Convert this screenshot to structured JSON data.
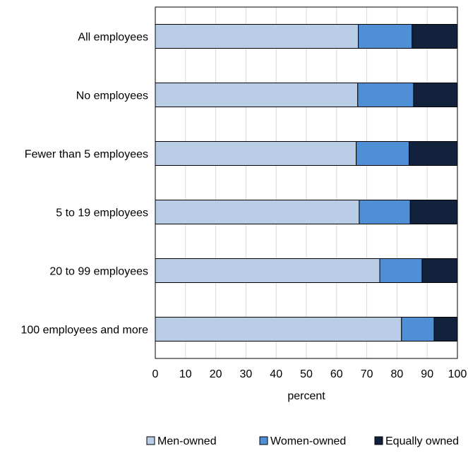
{
  "chart_data": {
    "type": "bar",
    "orientation": "horizontal",
    "stacked": true,
    "categories": [
      "All employees",
      "No employees",
      "Fewer than 5 employees",
      "5 to 19 employees",
      "20 to 99 employees",
      "100 employees and more"
    ],
    "series": [
      {
        "name": "Men-owned",
        "color": "#b9cde6",
        "values": [
          67.2,
          67.0,
          66.5,
          67.5,
          74.3,
          81.5
        ]
      },
      {
        "name": "Women-owned",
        "color": "#4f8fd6",
        "values": [
          17.8,
          18.5,
          17.5,
          16.9,
          14.0,
          10.8
        ]
      },
      {
        "name": "Equally owned",
        "color": "#12223d",
        "values": [
          15.0,
          14.5,
          16.0,
          15.6,
          11.7,
          7.7
        ]
      }
    ],
    "xlabel": "percent",
    "ylabel": "",
    "xlim": [
      0,
      100
    ],
    "xticks": [
      "0",
      "10",
      "20",
      "30",
      "40",
      "50",
      "60",
      "70",
      "80",
      "90",
      "100"
    ],
    "grid": "vertical",
    "legend": "bottom"
  }
}
